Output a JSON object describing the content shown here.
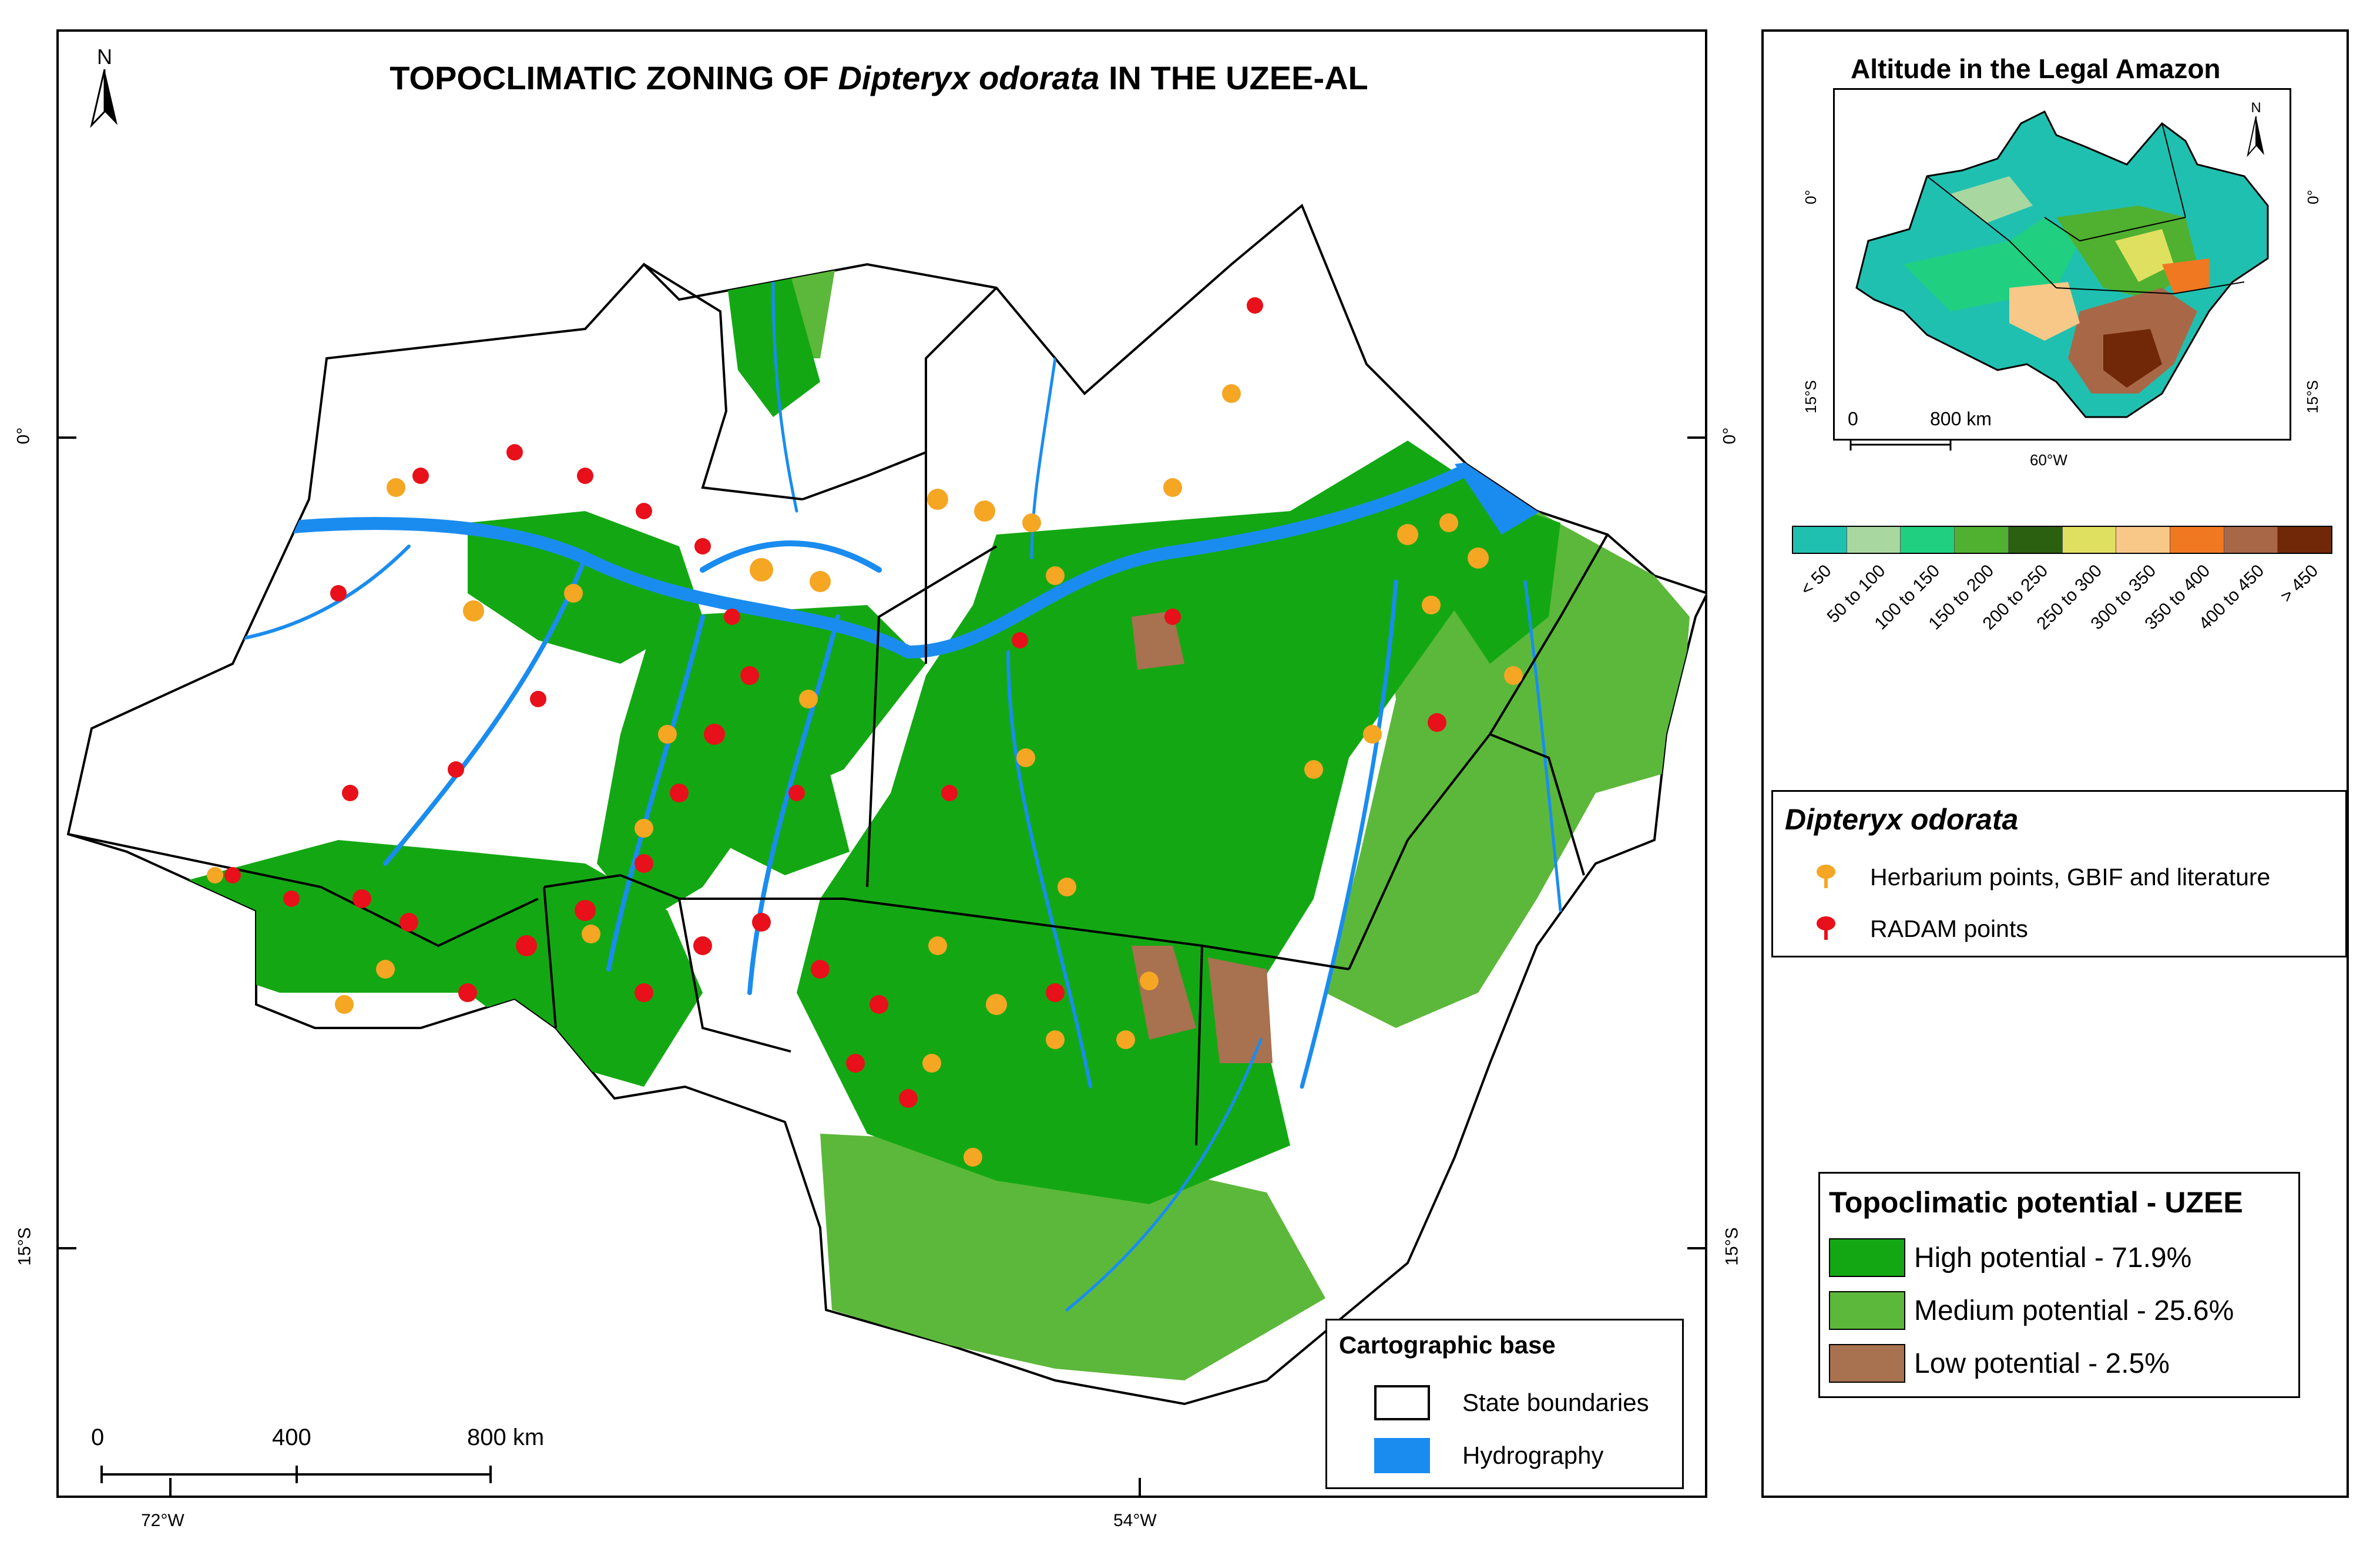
{
  "main_map": {
    "title_prefix": "TOPOCLIMATIC ZONING OF ",
    "title_species": "Dipteryx odorata",
    "title_suffix": " IN THE UZEE-AL",
    "north_label": "N",
    "lat_labels": {
      "equator": "0°",
      "south15": "15°S"
    },
    "lon_labels": {
      "w72": "72°W",
      "w54": "54°W"
    },
    "scale_bar": {
      "ticks": [
        "0",
        "400",
        "800 km"
      ]
    }
  },
  "inset": {
    "title": "Altitude in the Legal Amazon",
    "north_label": "N",
    "lat_labels": {
      "equator": "0°",
      "south15": "15°S"
    },
    "lon_label": "60°W",
    "scale_bar": {
      "ticks": [
        "0",
        "800 km"
      ]
    },
    "altitude_ramp": [
      {
        "label": "< 50",
        "color": "#20c0b0"
      },
      {
        "label": "50 to 100",
        "color": "#a8d8a0"
      },
      {
        "label": "100 to 150",
        "color": "#20d080"
      },
      {
        "label": "150 to 200",
        "color": "#50b030"
      },
      {
        "label": "200 to 250",
        "color": "#2a6010"
      },
      {
        "label": "250 to 300",
        "color": "#e0e060"
      },
      {
        "label": "300 to 350",
        "color": "#f8c888"
      },
      {
        "label": "350 to 400",
        "color": "#f07820"
      },
      {
        "label": "400 to 450",
        "color": "#a86848"
      },
      {
        "label": "> 450",
        "color": "#702808"
      }
    ]
  },
  "species_legend": {
    "title": "Dipteryx odorata",
    "items": [
      {
        "label": "Herbarium points, GBIF and literature",
        "color": "#f5a623",
        "icon": "tree-marker-icon"
      },
      {
        "label": "RADAM points",
        "color": "#e8101a",
        "icon": "tree-marker-icon"
      }
    ]
  },
  "potential_legend": {
    "title": "Topoclimatic potential - UZEE",
    "items": [
      {
        "label": "High potential - 71.9%",
        "color": "#13a813",
        "value_percent": 71.9
      },
      {
        "label": "Medium potential - 25.6%",
        "color": "#5cb83a",
        "value_percent": 25.6
      },
      {
        "label": "Low potential - 2.5%",
        "color": "#a8714f",
        "value_percent": 2.5
      }
    ]
  },
  "cartographic_legend": {
    "title": "Cartographic base",
    "items": [
      {
        "label": "State boundaries",
        "color": "#ffffff",
        "style": "outline"
      },
      {
        "label": "Hydrography",
        "color": "#1a8cf0",
        "style": "fill"
      }
    ]
  }
}
